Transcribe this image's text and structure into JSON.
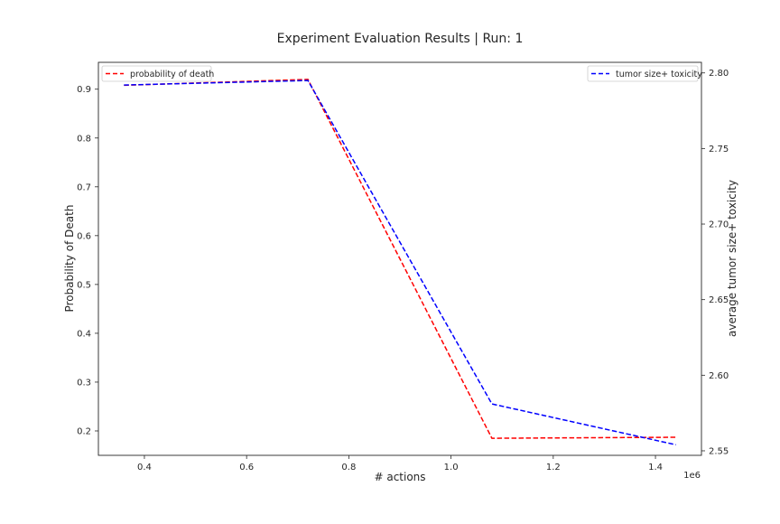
{
  "chart_data": {
    "type": "line",
    "title": "Experiment Evaluation Results | Run: 1",
    "xlabel": "# actions",
    "x_offset_label": "1e6",
    "x": [
      360000,
      720000,
      1080000,
      1440000
    ],
    "xlim": [
      310000,
      1490000
    ],
    "xticks": [
      400000,
      600000,
      800000,
      1000000,
      1200000,
      1400000
    ],
    "xtick_labels": [
      "0.4",
      "0.6",
      "0.8",
      "1.0",
      "1.2",
      "1.4"
    ],
    "left_axis": {
      "label": "Probability of Death",
      "ylim": [
        0.15,
        0.955
      ],
      "ticks": [
        0.2,
        0.3,
        0.4,
        0.5,
        0.6,
        0.7,
        0.8,
        0.9
      ],
      "tick_labels": [
        "0.2",
        "0.3",
        "0.4",
        "0.5",
        "0.6",
        "0.7",
        "0.8",
        "0.9"
      ]
    },
    "right_axis": {
      "label": "average tumor size+ toxicity",
      "ylim": [
        2.547,
        2.807
      ],
      "ticks": [
        2.55,
        2.6,
        2.65,
        2.7,
        2.75,
        2.8
      ],
      "tick_labels": [
        "2.55",
        "2.60",
        "2.65",
        "2.70",
        "2.75",
        "2.80"
      ]
    },
    "series": [
      {
        "name": "probability of death",
        "axis": "left",
        "color": "#ff0000",
        "style": "dashed",
        "values": [
          0.908,
          0.92,
          0.185,
          0.187
        ]
      },
      {
        "name": "tumor size+ toxicity",
        "axis": "right",
        "color": "#0000ff",
        "style": "dashed",
        "values": [
          2.792,
          2.795,
          2.581,
          2.554
        ]
      }
    ],
    "grid": false,
    "legend_left_placement": "upper-left",
    "legend_right_placement": "upper-right"
  }
}
